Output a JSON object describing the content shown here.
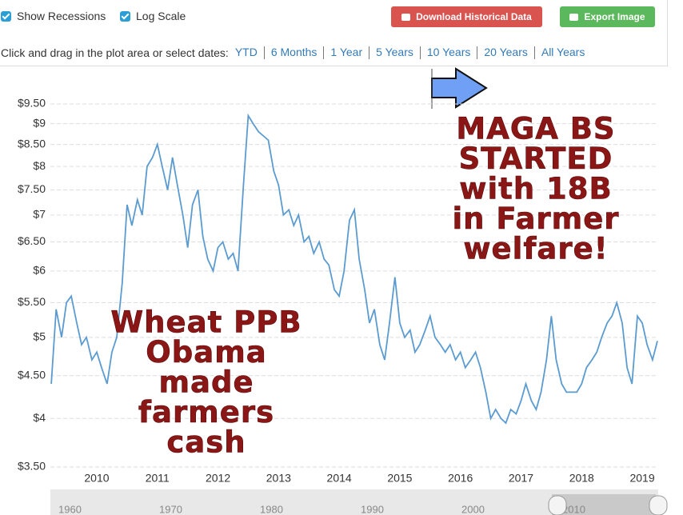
{
  "controls": {
    "recessions": "Show Recessions",
    "log": "Log Scale",
    "download": "Download Historical Data",
    "export": "Export Image",
    "range_prompt": "Click and drag in the plot area or select dates:",
    "ranges": [
      "YTD",
      "6 Months",
      "1 Year",
      "5 Years",
      "10 Years",
      "20 Years",
      "All Years"
    ]
  },
  "chart_data": {
    "type": "line",
    "log_scale": true,
    "grid": true,
    "x": [
      2009.25,
      2009.33,
      2009.42,
      2009.5,
      2009.58,
      2009.67,
      2009.75,
      2009.83,
      2009.92,
      2010.0,
      2010.08,
      2010.17,
      2010.25,
      2010.33,
      2010.42,
      2010.5,
      2010.58,
      2010.67,
      2010.75,
      2010.83,
      2010.92,
      2011.0,
      2011.08,
      2011.17,
      2011.25,
      2011.33,
      2011.42,
      2011.5,
      2011.58,
      2011.67,
      2011.75,
      2011.83,
      2011.92,
      2012.0,
      2012.08,
      2012.17,
      2012.25,
      2012.33,
      2012.42,
      2012.5,
      2012.58,
      2012.67,
      2012.75,
      2012.83,
      2012.92,
      2013.0,
      2013.08,
      2013.17,
      2013.25,
      2013.33,
      2013.42,
      2013.5,
      2013.58,
      2013.67,
      2013.75,
      2013.83,
      2013.92,
      2014.0,
      2014.08,
      2014.17,
      2014.25,
      2014.33,
      2014.42,
      2014.5,
      2014.58,
      2014.67,
      2014.75,
      2014.83,
      2014.92,
      2015.0,
      2015.08,
      2015.17,
      2015.25,
      2015.33,
      2015.42,
      2015.5,
      2015.58,
      2015.67,
      2015.75,
      2015.83,
      2015.92,
      2016.0,
      2016.08,
      2016.17,
      2016.25,
      2016.33,
      2016.42,
      2016.5,
      2016.58,
      2016.67,
      2016.75,
      2016.83,
      2016.92,
      2017.0,
      2017.08,
      2017.17,
      2017.25,
      2017.33,
      2017.42,
      2017.5,
      2017.58,
      2017.67,
      2017.75,
      2017.83,
      2017.92,
      2018.0,
      2018.08,
      2018.17,
      2018.25,
      2018.33,
      2018.42,
      2018.5,
      2018.58,
      2018.67,
      2018.75,
      2018.83,
      2018.92,
      2019.0,
      2019.08,
      2019.17,
      2019.25
    ],
    "series": [
      {
        "color": "#5b9bd0",
        "values": [
          4.4,
          5.4,
          5.0,
          5.5,
          5.6,
          5.2,
          4.9,
          5.0,
          4.7,
          4.8,
          4.6,
          4.4,
          4.8,
          5.0,
          5.8,
          7.2,
          6.8,
          7.3,
          7.0,
          8.0,
          8.2,
          8.5,
          8.0,
          7.5,
          8.2,
          7.6,
          7.0,
          6.4,
          7.2,
          7.5,
          6.6,
          6.2,
          6.0,
          6.4,
          6.5,
          6.2,
          6.3,
          6.0,
          7.6,
          9.2,
          9.0,
          8.8,
          8.7,
          8.6,
          7.9,
          7.6,
          7.0,
          7.1,
          6.8,
          7.0,
          6.5,
          6.6,
          6.3,
          6.5,
          6.2,
          6.1,
          5.7,
          5.6,
          6.0,
          6.9,
          7.1,
          6.2,
          5.7,
          5.2,
          5.4,
          4.9,
          4.7,
          5.2,
          5.9,
          5.2,
          5.0,
          5.1,
          4.8,
          4.9,
          5.1,
          5.3,
          5.0,
          4.9,
          4.8,
          4.9,
          4.7,
          4.8,
          4.6,
          4.7,
          4.8,
          4.6,
          4.3,
          4.0,
          4.1,
          4.0,
          3.95,
          4.1,
          4.05,
          4.2,
          4.4,
          4.2,
          4.1,
          4.3,
          4.7,
          5.3,
          4.7,
          4.4,
          4.3,
          4.3,
          4.3,
          4.4,
          4.6,
          4.7,
          4.8,
          5.0,
          5.2,
          5.3,
          5.5,
          5.2,
          4.6,
          4.4,
          5.3,
          5.2,
          4.9,
          4.7,
          4.95
        ]
      }
    ],
    "xlim": [
      2009.235,
      2019.25
    ],
    "xticks": [
      2010,
      2011,
      2012,
      2013,
      2014,
      2015,
      2016,
      2017,
      2018,
      2019
    ],
    "ylim": [
      3.5,
      9.5
    ],
    "yticks": [
      {
        "value": 3.5,
        "label": "$3.50"
      },
      {
        "value": 4,
        "label": "$4"
      },
      {
        "value": 4.5,
        "label": "$4.50"
      },
      {
        "value": 5,
        "label": "$5"
      },
      {
        "value": 5.5,
        "label": "$5.50"
      },
      {
        "value": 6,
        "label": "$6"
      },
      {
        "value": 6.5,
        "label": "$6.50"
      },
      {
        "value": 7,
        "label": "$7"
      },
      {
        "value": 7.5,
        "label": "$7.50"
      },
      {
        "value": 8,
        "label": "$8"
      },
      {
        "value": 8.5,
        "label": "$8.50"
      },
      {
        "value": 9,
        "label": "$9"
      },
      {
        "value": 9.5,
        "label": "$9.50"
      }
    ],
    "annotations": [
      {
        "lines": [
          "MAGA BS",
          "STARTED",
          "with 18B",
          "in Farmer",
          "welfare!"
        ]
      },
      {
        "lines": [
          "Wheat PPB",
          "Obama",
          "made",
          "farmers",
          "cash"
        ]
      }
    ]
  },
  "navigator": {
    "labels": [
      "1960",
      "1970",
      "1980",
      "1990",
      "2000",
      "2010"
    ]
  }
}
